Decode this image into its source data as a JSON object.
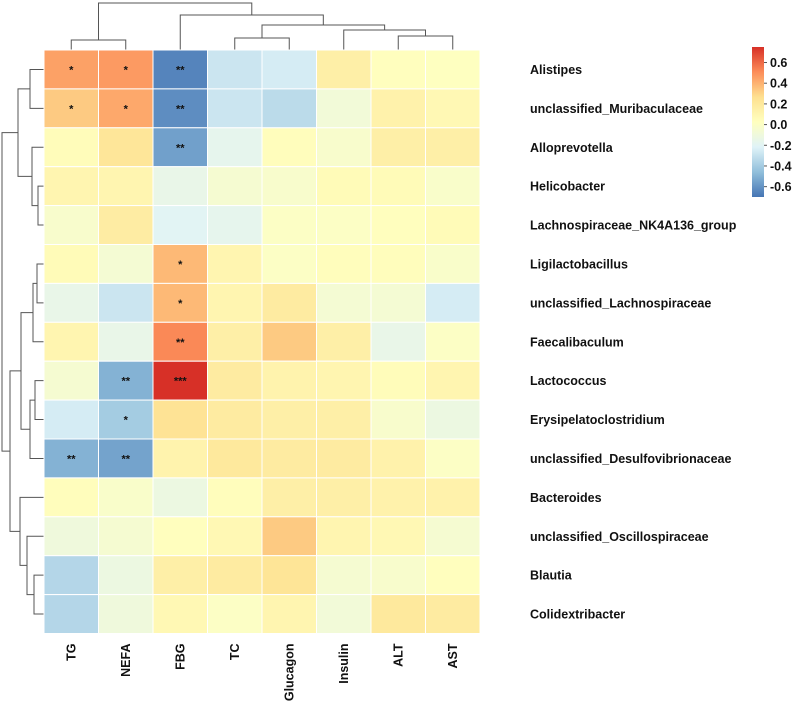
{
  "chart_data": {
    "type": "heatmap",
    "title": "",
    "columns": [
      "TG",
      "NEFA",
      "FBG",
      "TC",
      "Glucagon",
      "Insulin",
      "ALT",
      "AST"
    ],
    "rows": [
      "Alistipes",
      "unclassified_Muribaculaceae",
      "Alloprevotella",
      "Helicobacter",
      "Lachnospiraceae_NK4A136_group",
      "Ligilactobacillus",
      "unclassified_Lachnospiraceae",
      "Faecalibaculum",
      "Lactococcus",
      "Erysipelatoclostridium",
      "unclassified_Desulfovibrionaceae",
      "Bacteroides",
      "unclassified_Oscillospiraceae",
      "Blautia",
      "Colidextribacter"
    ],
    "values": [
      [
        0.45,
        0.47,
        -0.65,
        -0.28,
        -0.25,
        0.15,
        0.03,
        0.02
      ],
      [
        0.33,
        0.43,
        -0.62,
        -0.28,
        -0.33,
        -0.08,
        0.13,
        0.08
      ],
      [
        0.05,
        0.22,
        -0.56,
        -0.17,
        0.04,
        -0.03,
        0.15,
        0.15
      ],
      [
        0.1,
        0.1,
        -0.15,
        -0.05,
        -0.03,
        0.06,
        0.06,
        -0.02
      ],
      [
        -0.03,
        0.17,
        -0.2,
        -0.17,
        0.0,
        0.0,
        0.03,
        0.06
      ],
      [
        0.06,
        -0.06,
        0.38,
        0.1,
        0.0,
        0.04,
        0.04,
        -0.02
      ],
      [
        -0.15,
        -0.28,
        0.38,
        0.1,
        0.18,
        -0.06,
        -0.06,
        -0.25
      ],
      [
        0.1,
        -0.15,
        0.52,
        0.15,
        0.33,
        0.15,
        -0.15,
        0.0
      ],
      [
        -0.05,
        -0.5,
        0.75,
        0.18,
        0.12,
        0.1,
        0.05,
        0.1
      ],
      [
        -0.25,
        -0.4,
        0.24,
        0.18,
        0.15,
        0.15,
        -0.03,
        -0.12
      ],
      [
        -0.5,
        -0.55,
        0.12,
        0.2,
        0.18,
        0.18,
        0.13,
        0.0
      ],
      [
        0.04,
        -0.02,
        -0.12,
        0.04,
        0.15,
        0.15,
        0.13,
        0.13
      ],
      [
        -0.1,
        -0.05,
        0.03,
        0.08,
        0.33,
        0.1,
        0.08,
        -0.05
      ],
      [
        -0.35,
        -0.12,
        0.15,
        0.18,
        0.23,
        -0.05,
        -0.03,
        0.03
      ],
      [
        -0.35,
        -0.1,
        0.08,
        0.0,
        0.1,
        -0.08,
        0.2,
        0.18
      ]
    ],
    "significance": [
      [
        "*",
        "*",
        "**",
        "",
        "",
        "",
        "",
        ""
      ],
      [
        "*",
        "*",
        "**",
        "",
        "",
        "",
        "",
        ""
      ],
      [
        "",
        "",
        "**",
        "",
        "",
        "",
        "",
        ""
      ],
      [
        "",
        "",
        "",
        "",
        "",
        "",
        "",
        ""
      ],
      [
        "",
        "",
        "",
        "",
        "",
        "",
        "",
        ""
      ],
      [
        "",
        "",
        "*",
        "",
        "",
        "",
        "",
        ""
      ],
      [
        "",
        "",
        "*",
        "",
        "",
        "",
        "",
        ""
      ],
      [
        "",
        "",
        "**",
        "",
        "",
        "",
        "",
        ""
      ],
      [
        "",
        "**",
        "***",
        "",
        "",
        "",
        "",
        ""
      ],
      [
        "",
        "*",
        "",
        "",
        "",
        "",
        "",
        ""
      ],
      [
        "**",
        "**",
        "",
        "",
        "",
        "",
        "",
        ""
      ],
      [
        "",
        "",
        "",
        "",
        "",
        "",
        "",
        ""
      ],
      [
        "",
        "",
        "",
        "",
        "",
        "",
        "",
        ""
      ],
      [
        "",
        "",
        "",
        "",
        "",
        "",
        "",
        ""
      ],
      [
        "",
        "",
        "",
        "",
        "",
        "",
        "",
        ""
      ]
    ],
    "color_range": [
      -0.7,
      0.75
    ],
    "colorbar": {
      "ticks": [
        0.6,
        0.4,
        0.2,
        0.0,
        -0.2,
        -0.4,
        -0.6
      ],
      "tick_labels": [
        "0.6",
        "0.4",
        "0.2",
        "0.0",
        "-0.2",
        "-0.4",
        "-0.6"
      ],
      "colors": [
        "#4575b4",
        "#91bfdb",
        "#e0f3f8",
        "#ffffbf",
        "#fee090",
        "#fc8d59",
        "#d73027"
      ]
    },
    "column_dendrogram": true,
    "row_dendrogram": true
  }
}
